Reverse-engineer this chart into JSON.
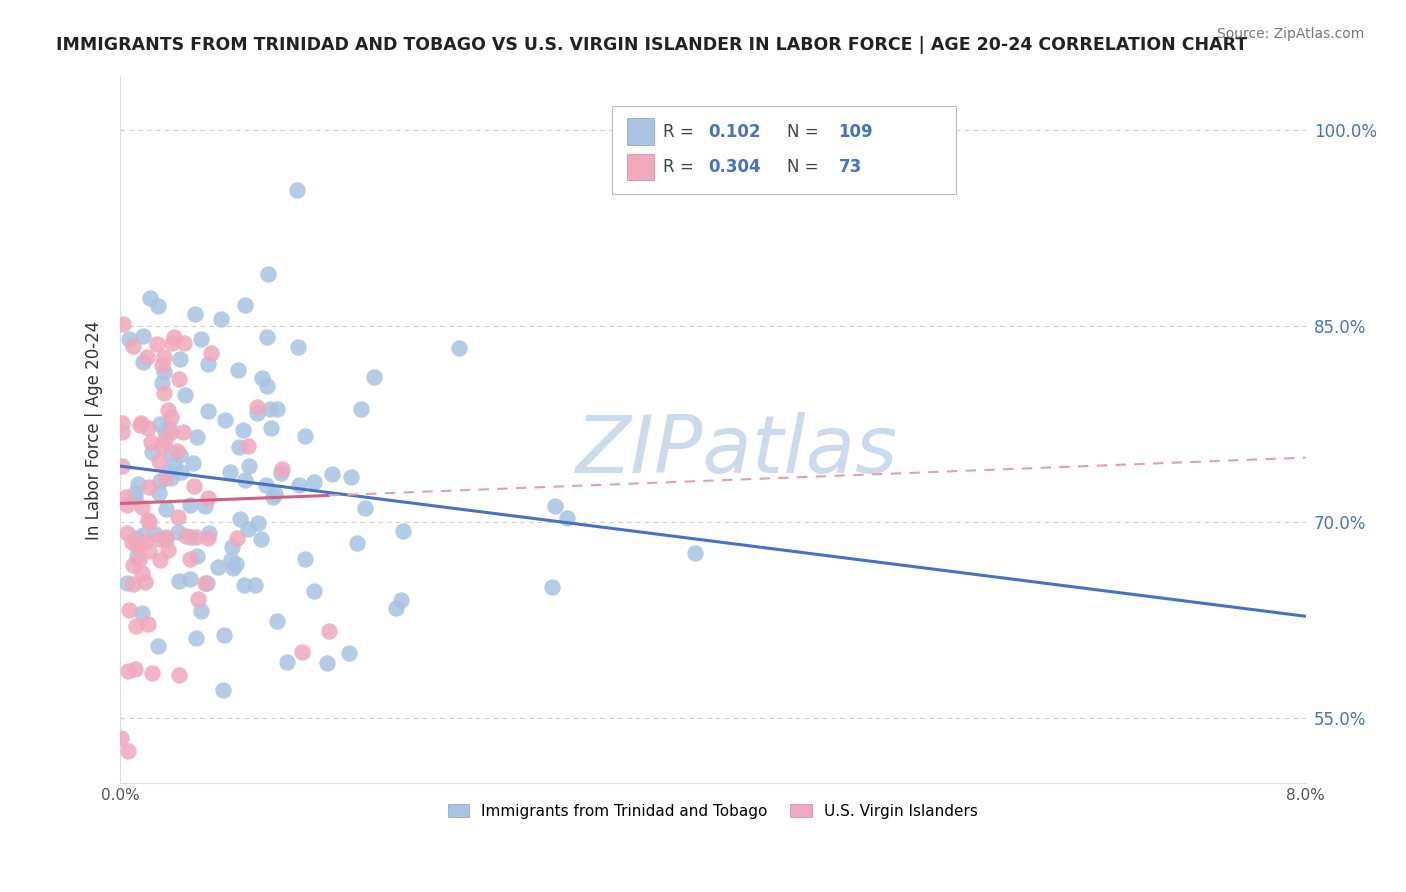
{
  "title": "IMMIGRANTS FROM TRINIDAD AND TOBAGO VS U.S. VIRGIN ISLANDER IN LABOR FORCE | AGE 20-24 CORRELATION CHART",
  "source": "Source: ZipAtlas.com",
  "ylabel": "In Labor Force | Age 20-24",
  "xlim": [
    0.0,
    0.08
  ],
  "ylim": [
    0.5,
    1.04
  ],
  "ytick_positions": [
    0.55,
    0.7,
    0.85,
    1.0
  ],
  "ytick_labels": [
    "55.0%",
    "70.0%",
    "85.0%",
    "100.0%"
  ],
  "blue_R": 0.102,
  "blue_N": 109,
  "pink_R": 0.304,
  "pink_N": 73,
  "blue_color": "#a8c4e2",
  "pink_color": "#f0a8bc",
  "blue_edge_color": "#7090c0",
  "pink_edge_color": "#d07090",
  "blue_line_color": "#4472c4",
  "pink_line_color": "#d06080",
  "pink_dash_color": "#e0a0b0",
  "watermark": "ZIPatlas",
  "watermark_color": "#ccdaee",
  "legend_label_blue": "Immigrants from Trinidad and Tobago",
  "legend_label_pink": "U.S. Virgin Islanders",
  "blue_intercept": 0.725,
  "blue_slope_val": 1.1,
  "pink_intercept": 0.7,
  "pink_slope_val": 5.2
}
